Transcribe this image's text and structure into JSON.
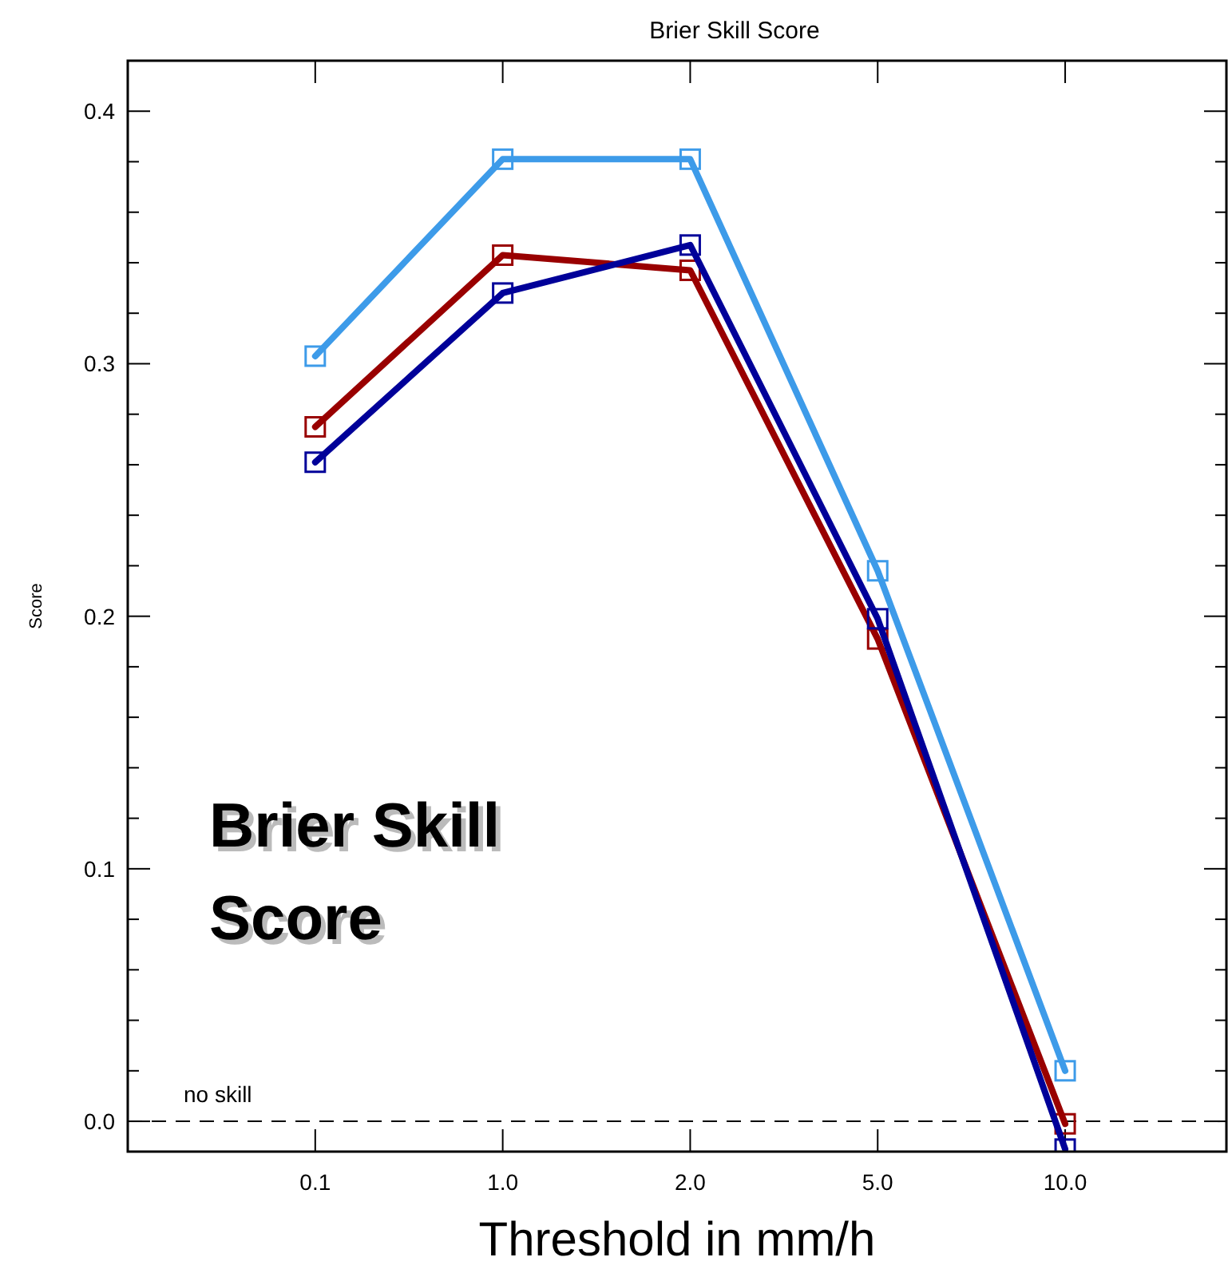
{
  "chart_data": {
    "type": "line",
    "title": "Brier Skill Score",
    "xlabel": "Threshold in mm/h",
    "ylabel": "Score",
    "categories": [
      "0.1",
      "1.0",
      "2.0",
      "5.0",
      "10.0"
    ],
    "series": [
      {
        "color": "#3d9be9",
        "values": [
          0.303,
          0.381,
          0.381,
          0.218,
          0.02
        ]
      },
      {
        "color": "#990000",
        "values": [
          0.275,
          0.343,
          0.337,
          0.191,
          -0.001
        ]
      },
      {
        "color": "#000099",
        "values": [
          0.261,
          0.328,
          0.347,
          0.199,
          -0.011
        ]
      }
    ],
    "ylim": [
      -0.012,
      0.42
    ],
    "yticks": [
      {
        "value": 0,
        "label": "0.0"
      },
      {
        "value": 0.02,
        "label": null
      },
      {
        "value": 0.04,
        "label": null
      },
      {
        "value": 0.06,
        "label": null
      },
      {
        "value": 0.08,
        "label": null
      },
      0.1,
      {
        "value": 0.12,
        "label": null
      },
      {
        "value": 0.14,
        "label": null
      },
      {
        "value": 0.16,
        "label": null
      },
      {
        "value": 0.18,
        "label": null
      },
      0.2,
      {
        "value": 0.22,
        "label": null
      },
      {
        "value": 0.24,
        "label": null
      },
      {
        "value": 0.26,
        "label": null
      },
      {
        "value": 0.28,
        "label": null
      },
      0.3,
      {
        "value": 0.32,
        "label": null
      },
      {
        "value": 0.34,
        "label": null
      },
      {
        "value": 0.36,
        "label": null
      },
      {
        "value": 0.38,
        "label": null
      },
      0.4
    ],
    "ref_lines": [
      {
        "axis": "y",
        "value": 0,
        "label": "no skill",
        "line_style": "dashed",
        "color": "#000000"
      }
    ],
    "annotations": [
      "Brier Skill Score"
    ],
    "marker": "square",
    "line_style": "solid",
    "grid": false
  }
}
